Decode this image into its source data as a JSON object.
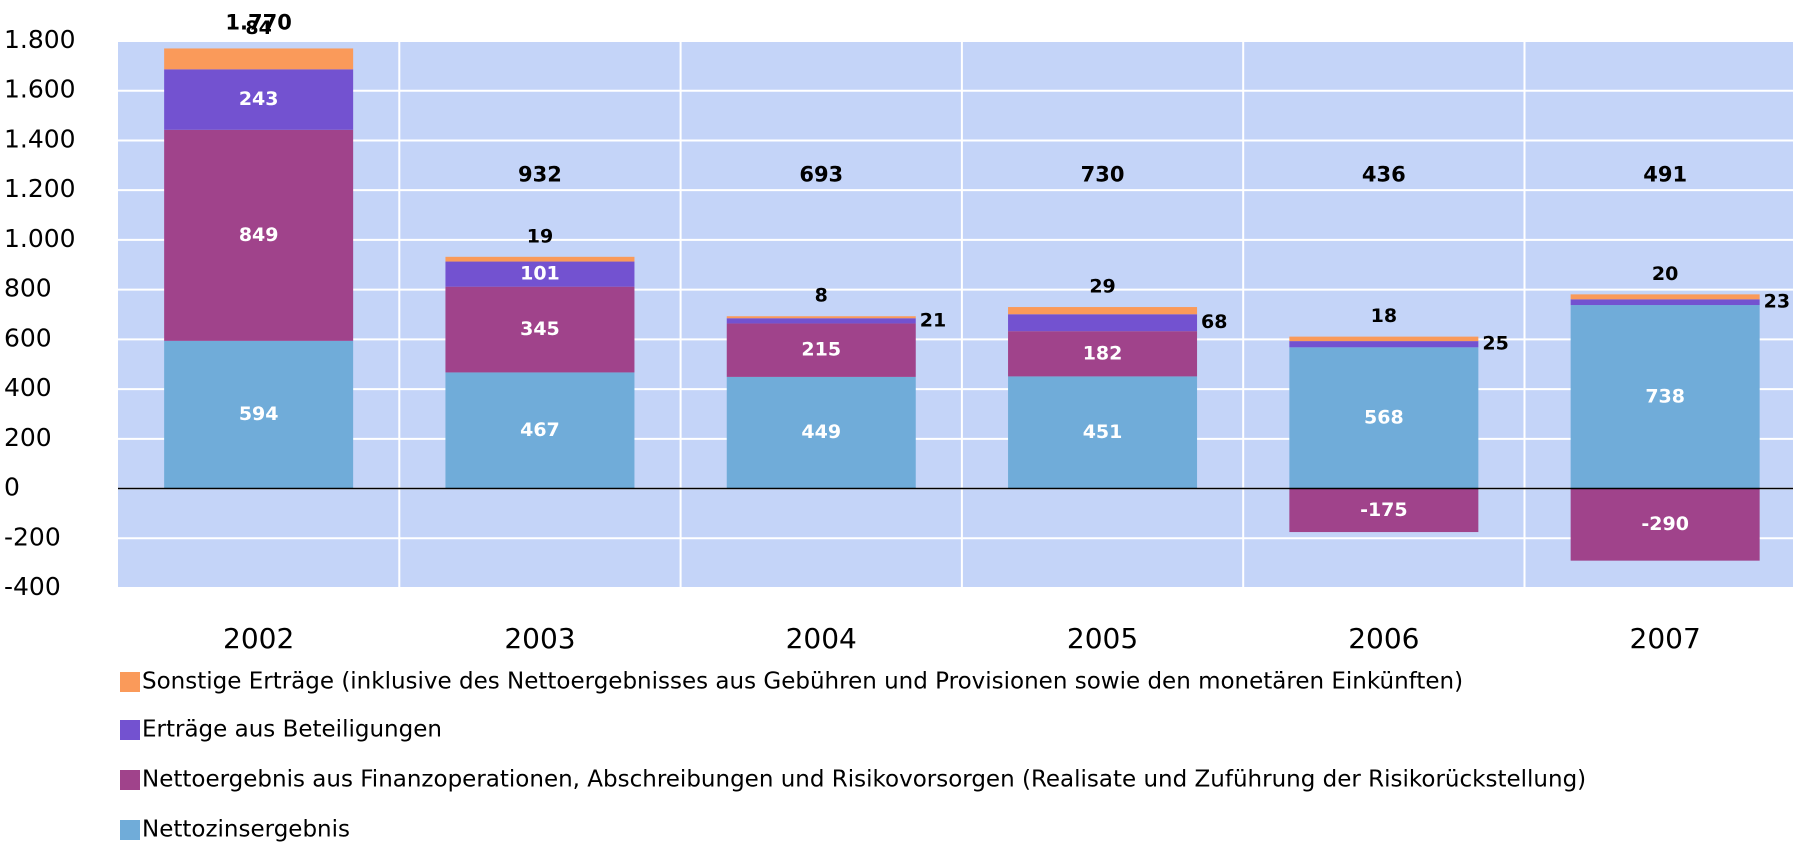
{
  "chart_data": {
    "type": "stacked_bar",
    "categories": [
      "2002",
      "2003",
      "2004",
      "2005",
      "2006",
      "2007"
    ],
    "series": [
      {
        "name": "Nettozinsergebnis",
        "color": "#70acd9",
        "values": [
          594,
          467,
          449,
          451,
          568,
          738
        ]
      },
      {
        "name": "Nettoergebnis aus Finanzoperationen, Abschreibungen und Risikovorsorgen (Realisate und Zuführung der Risikorückstellung)",
        "color": "#a0438b",
        "values": [
          849,
          345,
          215,
          182,
          -175,
          -290
        ]
      },
      {
        "name": "Erträge aus Beteiligungen",
        "color": "#7352d0",
        "values": [
          243,
          101,
          21,
          68,
          25,
          23
        ]
      },
      {
        "name": "Sonstige Erträge (inklusive des Nettoergebnisses aus Gebühren und Provisionen sowie den monetären Einkünften)",
        "color": "#fa9a5a",
        "values": [
          84,
          19,
          8,
          29,
          18,
          20
        ]
      }
    ],
    "totals": [
      {
        "value": 1770,
        "label": "1.770"
      },
      932,
      693,
      730,
      436,
      491
    ],
    "ylim": [
      -400,
      1800
    ],
    "yticks": [
      -400,
      -200,
      0,
      200,
      400,
      600,
      800,
      {
        "value": 1000,
        "label": "1.000"
      },
      {
        "value": 1200,
        "label": "1.200"
      },
      {
        "value": 1400,
        "label": "1.400"
      },
      {
        "value": 1600,
        "label": "1.600"
      },
      {
        "value": 1800,
        "label": "1.800"
      }
    ],
    "grid": true,
    "plot_background": "#c4d4f8"
  }
}
